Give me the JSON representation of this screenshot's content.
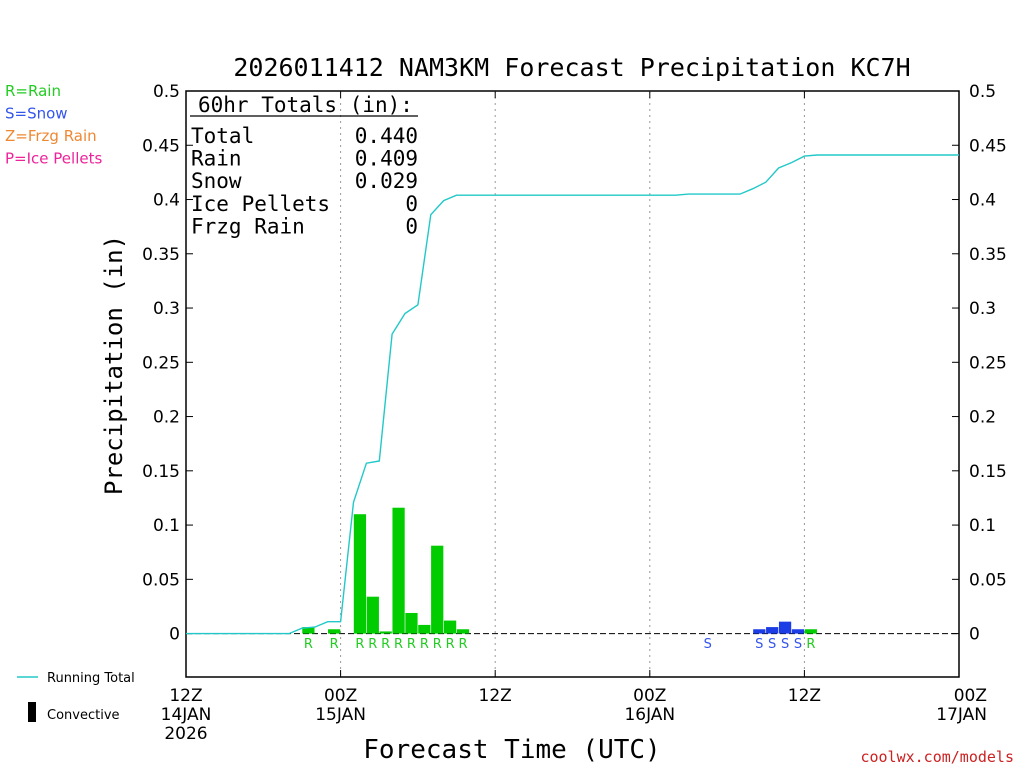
{
  "chart_data": {
    "type": "bar",
    "title": "2026011412 NAM3KM Forecast Precipitation KC7H",
    "xlabel": "Forecast Time (UTC)",
    "ylabel": "Precipitation (in)",
    "ylim": [
      -0.04,
      0.5
    ],
    "yticks": [
      "0.5",
      "0.45",
      "0.4",
      "0.35",
      "0.3",
      "0.25",
      "0.2",
      "0.15",
      "0.1",
      "0.05",
      "0"
    ],
    "xlim_hours": [
      0,
      60
    ],
    "x_ticks": [
      {
        "hour": 0,
        "l1": "12Z",
        "l2": "14JAN",
        "l3": "2026"
      },
      {
        "hour": 12,
        "l1": "00Z",
        "l2": "15JAN"
      },
      {
        "hour": 24,
        "l1": "12Z"
      },
      {
        "hour": 36,
        "l1": "00Z",
        "l2": "16JAN"
      },
      {
        "hour": 48,
        "l1": "12Z"
      },
      {
        "hour": 60,
        "l1": "00Z",
        "l2": "17JAN"
      }
    ],
    "gridlines_hours": [
      12,
      24,
      36,
      48
    ],
    "colors": {
      "rain": "#00cc00",
      "snow": "#1c3ce6",
      "frzg_rain": "#ee8833",
      "ice_pellets": "#ee2299",
      "running_total": "#22c8c8"
    },
    "legend": [
      {
        "code": "R",
        "text": "R=Rain",
        "color": "#22cc22"
      },
      {
        "code": "S",
        "text": "S=Snow",
        "color": "#3355ee"
      },
      {
        "code": "Z",
        "text": "Z=Frzg Rain",
        "color": "#ee8833"
      },
      {
        "code": "P",
        "text": "P=Ice Pellets",
        "color": "#ee2299"
      }
    ],
    "bottom_legend": {
      "running_total": "Running Total",
      "convective": "Convective"
    },
    "totals": {
      "header": "60hr Totals (in):",
      "rows": [
        {
          "label": "Total",
          "value": "0.440"
        },
        {
          "label": "Rain",
          "value": "0.409"
        },
        {
          "label": "Snow",
          "value": "0.029"
        },
        {
          "label": "Ice Pellets",
          "value": "0"
        },
        {
          "label": "Frzg Rain",
          "value": "0"
        }
      ]
    },
    "bars": [
      {
        "hour": 9.5,
        "value": 0.006,
        "type": "R"
      },
      {
        "hour": 11.5,
        "value": 0.004,
        "type": "R"
      },
      {
        "hour": 13.5,
        "value": 0.11,
        "type": "R"
      },
      {
        "hour": 14.5,
        "value": 0.034,
        "type": "R"
      },
      {
        "hour": 15.5,
        "value": 0.002,
        "type": "R"
      },
      {
        "hour": 16.5,
        "value": 0.116,
        "type": "R"
      },
      {
        "hour": 17.5,
        "value": 0.019,
        "type": "R"
      },
      {
        "hour": 18.5,
        "value": 0.008,
        "type": "R"
      },
      {
        "hour": 19.5,
        "value": 0.081,
        "type": "R"
      },
      {
        "hour": 20.5,
        "value": 0.012,
        "type": "R"
      },
      {
        "hour": 21.5,
        "value": 0.004,
        "type": "R"
      },
      {
        "hour": 40.5,
        "value": 0.0,
        "type": "S"
      },
      {
        "hour": 44.5,
        "value": 0.004,
        "type": "S"
      },
      {
        "hour": 45.5,
        "value": 0.006,
        "type": "S"
      },
      {
        "hour": 46.5,
        "value": 0.011,
        "type": "S"
      },
      {
        "hour": 47.5,
        "value": 0.004,
        "type": "S"
      },
      {
        "hour": 48.5,
        "value": 0.004,
        "type": "R"
      }
    ],
    "running_total": [
      {
        "hour": 0,
        "value": 0
      },
      {
        "hour": 8,
        "value": 0
      },
      {
        "hour": 9,
        "value": 0.005
      },
      {
        "hour": 10,
        "value": 0.006
      },
      {
        "hour": 11,
        "value": 0.011
      },
      {
        "hour": 12,
        "value": 0.011
      },
      {
        "hour": 13,
        "value": 0.121
      },
      {
        "hour": 14,
        "value": 0.157
      },
      {
        "hour": 15,
        "value": 0.159
      },
      {
        "hour": 16,
        "value": 0.276
      },
      {
        "hour": 17,
        "value": 0.295
      },
      {
        "hour": 18,
        "value": 0.303
      },
      {
        "hour": 19,
        "value": 0.386
      },
      {
        "hour": 20,
        "value": 0.399
      },
      {
        "hour": 21,
        "value": 0.404
      },
      {
        "hour": 24,
        "value": 0.404
      },
      {
        "hour": 36,
        "value": 0.404
      },
      {
        "hour": 38,
        "value": 0.404
      },
      {
        "hour": 39,
        "value": 0.405
      },
      {
        "hour": 43,
        "value": 0.405
      },
      {
        "hour": 44,
        "value": 0.41
      },
      {
        "hour": 45,
        "value": 0.416
      },
      {
        "hour": 46,
        "value": 0.429
      },
      {
        "hour": 47,
        "value": 0.434
      },
      {
        "hour": 48,
        "value": 0.44
      },
      {
        "hour": 49,
        "value": 0.441
      },
      {
        "hour": 60,
        "value": 0.441
      }
    ],
    "credit": "coolwx.com/models"
  }
}
